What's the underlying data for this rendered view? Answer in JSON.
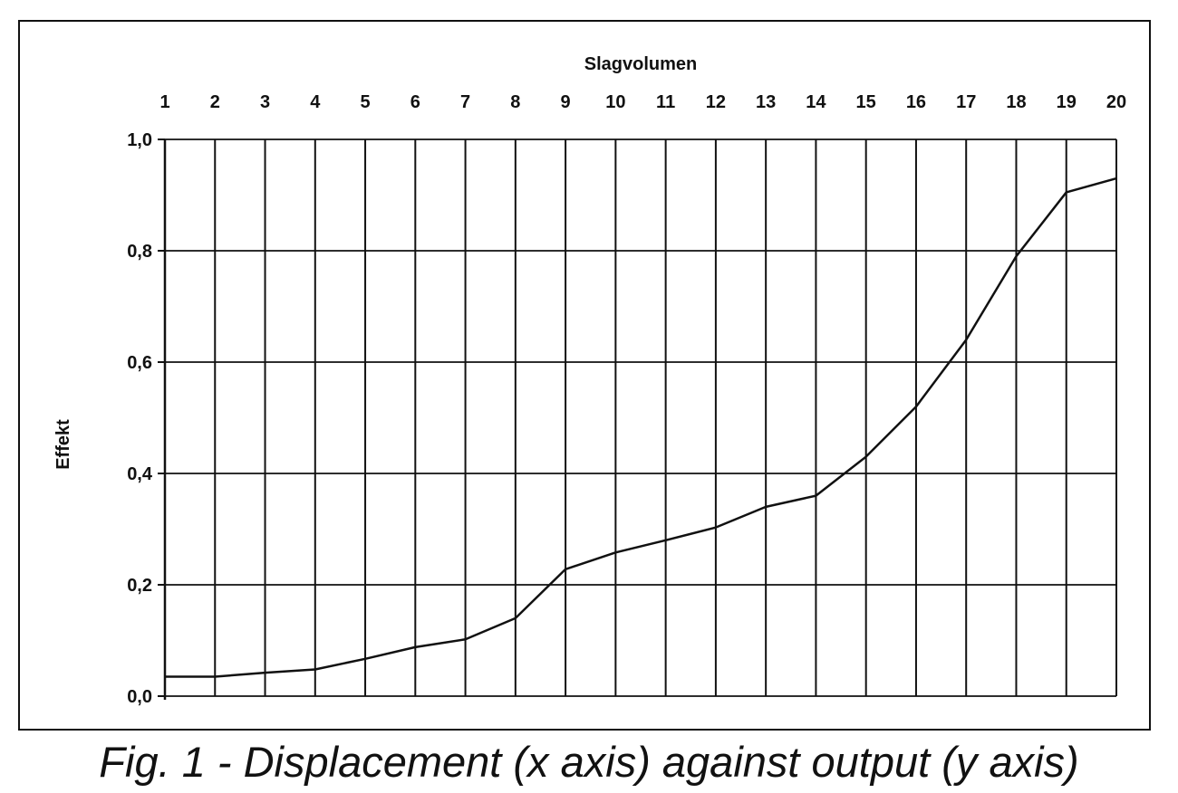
{
  "chart_data": {
    "type": "line",
    "title": "Slagvolumen",
    "xlabel": "Slagvolumen",
    "ylabel": "Effekt",
    "x_axis_position": "top",
    "x": [
      1,
      2,
      3,
      4,
      5,
      6,
      7,
      8,
      9,
      10,
      11,
      12,
      13,
      14,
      15,
      16,
      17,
      18,
      19,
      20
    ],
    "x_tick_labels": [
      "1",
      "2",
      "3",
      "4",
      "5",
      "6",
      "7",
      "8",
      "9",
      "10",
      "11",
      "12",
      "13",
      "14",
      "15",
      "16",
      "17",
      "18",
      "19",
      "20"
    ],
    "y_tick_labels": [
      "0,0",
      "0,2",
      "0,4",
      "0,6",
      "0,8",
      "1,0"
    ],
    "y_ticks": [
      0,
      0.2,
      0.4,
      0.6,
      0.8,
      1.0
    ],
    "ylim": [
      0,
      1.0
    ],
    "xlim": [
      1,
      20
    ],
    "grid": true,
    "series": [
      {
        "values": [
          0.035,
          0.035,
          0.042,
          0.048,
          0.067,
          0.088,
          0.102,
          0.14,
          0.228,
          0.258,
          0.28,
          0.303,
          0.34,
          0.36,
          0.43,
          0.52,
          0.64,
          0.79,
          0.905,
          0.93
        ]
      }
    ]
  },
  "caption": "Fig. 1 - Displacement (x axis) against output (y axis)"
}
